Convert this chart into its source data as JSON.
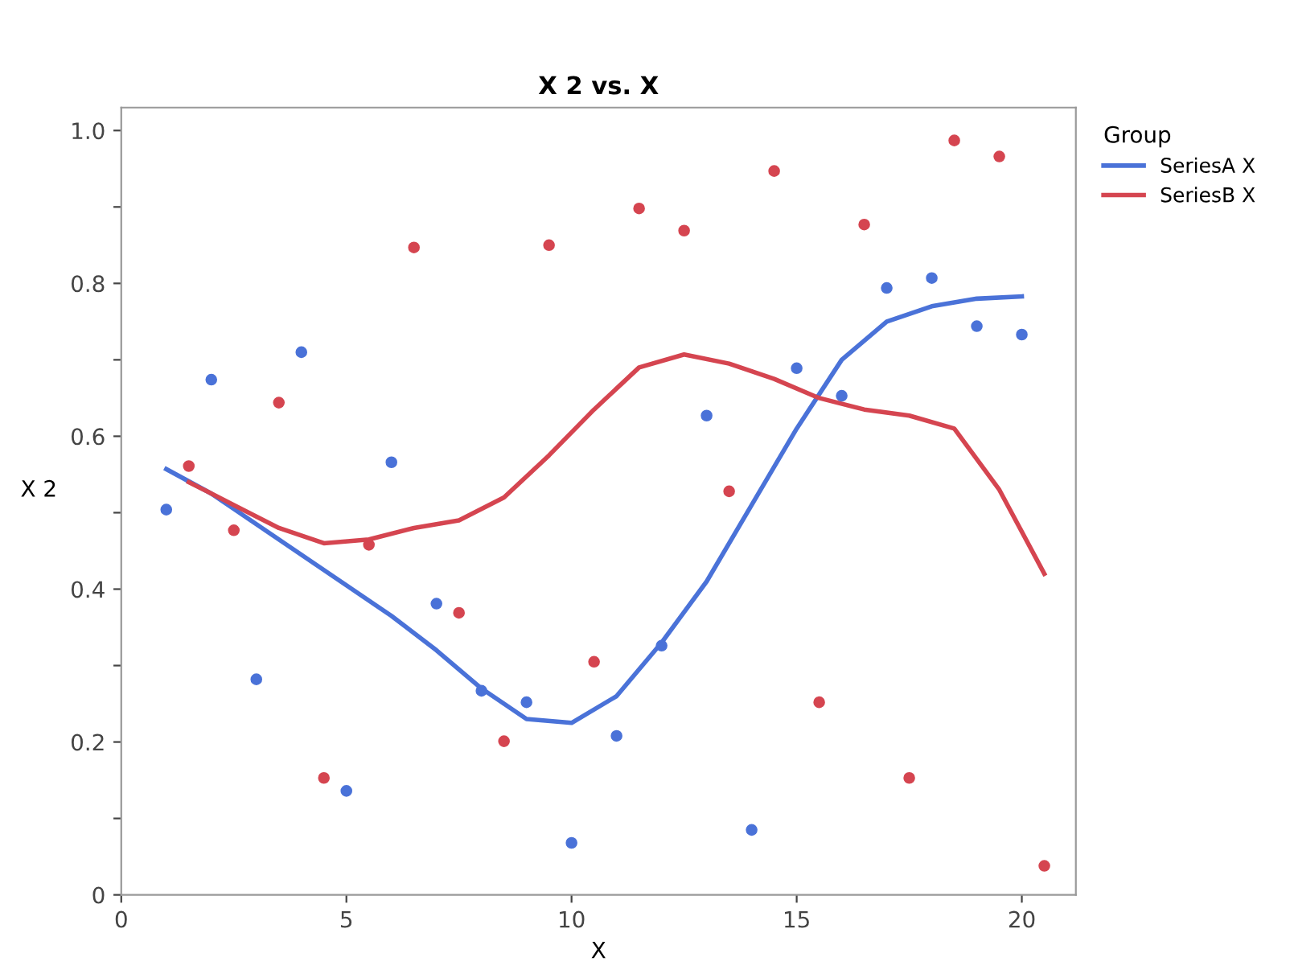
{
  "chart_data": {
    "type": "scatter",
    "title": "X 2 vs. X",
    "xlabel": "X",
    "ylabel": "X 2",
    "legend_title": "Group",
    "legend": "right",
    "grid": false,
    "marker": "circle",
    "xlim": [
      0,
      21.2
    ],
    "xticks": [
      0,
      5,
      10,
      15,
      20
    ],
    "ylim": [
      0,
      1.03
    ],
    "yticks": [
      0,
      {
        "value": 0.1,
        "label": null
      },
      0.2,
      {
        "value": 0.3,
        "label": null
      },
      0.4,
      {
        "value": 0.5,
        "label": null
      },
      0.6,
      {
        "value": 0.7,
        "label": null
      },
      0.8,
      {
        "value": 0.9,
        "label": null
      },
      {
        "value": 1,
        "label": "1.0"
      }
    ],
    "series": [
      {
        "color": "#4a72d8",
        "x": [
          1,
          2,
          3,
          4,
          5,
          6,
          7,
          8,
          9,
          10,
          11,
          12,
          13,
          14,
          15,
          16,
          17,
          18,
          19,
          20
        ],
        "values": [
          0.504,
          0.674,
          0.282,
          0.71,
          0.136,
          0.566,
          0.381,
          0.267,
          0.252,
          0.068,
          0.208,
          0.326,
          0.627,
          0.085,
          0.689,
          0.653,
          0.794,
          0.807,
          0.744,
          0.733
        ]
      },
      {
        "color": "#d54550",
        "x": [
          1.5,
          2.5,
          3.5,
          4.5,
          5.5,
          6.5,
          7.5,
          8.5,
          9.5,
          10.5,
          11.5,
          12.5,
          13.5,
          14.5,
          15.5,
          16.5,
          17.5,
          18.5,
          19.5,
          20.5
        ],
        "values": [
          0.561,
          0.477,
          0.644,
          0.153,
          0.458,
          0.847,
          0.369,
          0.201,
          0.85,
          0.305,
          0.898,
          0.869,
          0.528,
          0.947,
          0.252,
          0.877,
          0.153,
          0.987,
          0.966,
          0.038
        ]
      },
      {
        "type": "line",
        "name": "SeriesA X",
        "color": "#4a72d8",
        "marker": "none",
        "x": [
          1,
          2,
          3,
          4,
          5,
          6,
          7,
          8,
          9,
          10,
          11,
          12,
          13,
          14,
          15,
          16,
          17,
          18,
          19,
          20
        ],
        "values": [
          0.557,
          0.525,
          0.485,
          0.445,
          0.405,
          0.365,
          0.32,
          0.27,
          0.23,
          0.225,
          0.26,
          0.33,
          0.41,
          0.51,
          0.61,
          0.7,
          0.75,
          0.77,
          0.78,
          0.783
        ]
      },
      {
        "type": "line",
        "name": "SeriesB X",
        "color": "#d54550",
        "marker": "none",
        "x": [
          1.5,
          2.5,
          3.5,
          4.5,
          5.5,
          6.5,
          7.5,
          8.5,
          9.5,
          10.5,
          11.5,
          12.5,
          13.5,
          14.5,
          15.5,
          16.5,
          17.5,
          18.5,
          19.5,
          20.5
        ],
        "values": [
          0.54,
          0.51,
          0.48,
          0.46,
          0.465,
          0.48,
          0.49,
          0.52,
          0.575,
          0.635,
          0.69,
          0.707,
          0.695,
          0.675,
          0.65,
          0.635,
          0.627,
          0.61,
          0.53,
          0.42
        ]
      }
    ]
  }
}
